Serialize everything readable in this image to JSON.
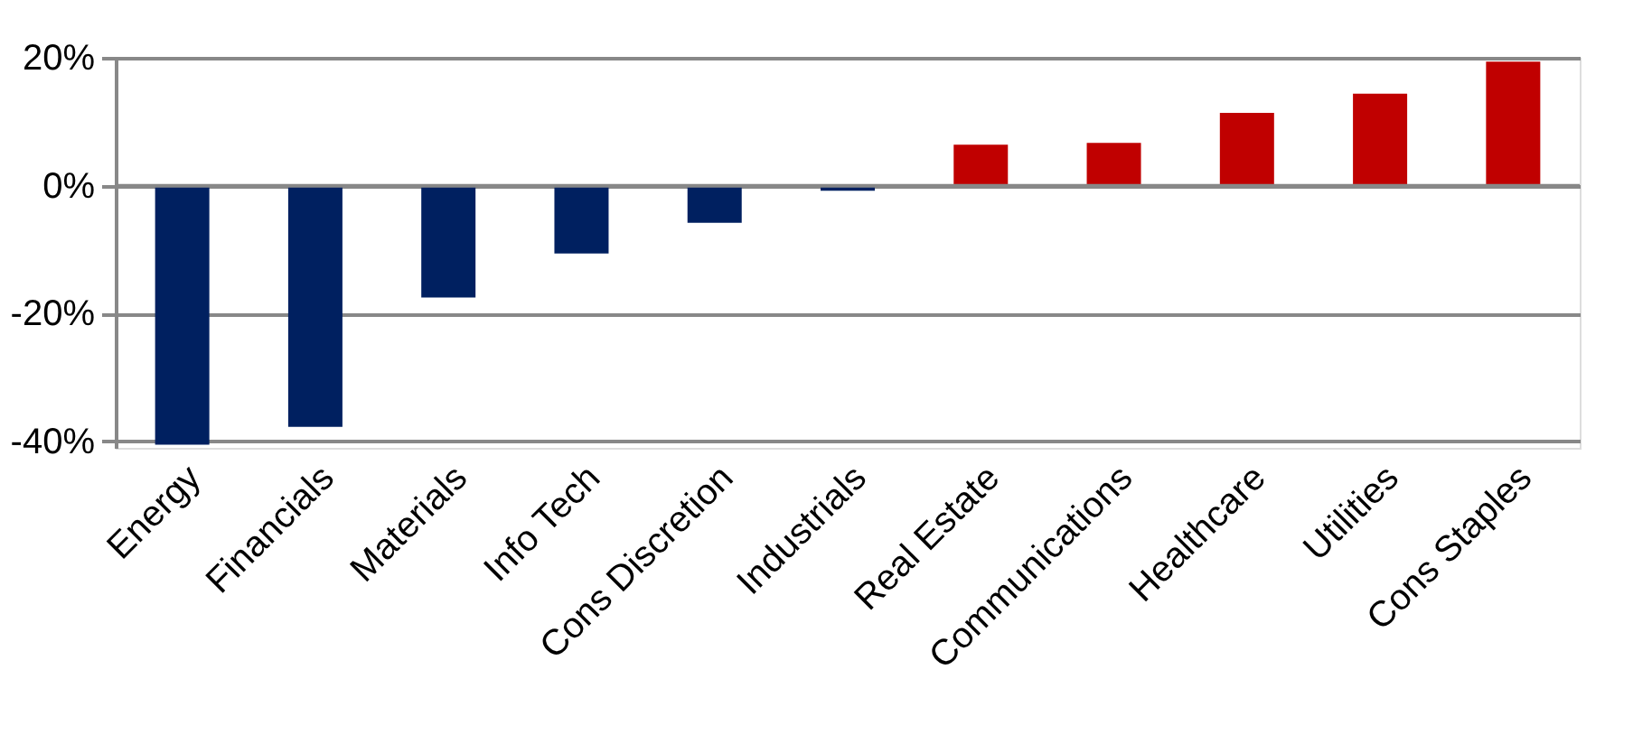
{
  "chart_data": {
    "type": "bar",
    "categories": [
      "Energy",
      "Financials",
      "Materials",
      "Info Tech",
      "Cons Discretion",
      "Industrials",
      "Real Estate",
      "Communications",
      "Healthcare",
      "Utilities",
      "Cons Staples"
    ],
    "values": [
      -40.5,
      -37.7,
      -17.5,
      -10.6,
      -5.8,
      -0.8,
      6.4,
      6.7,
      11.4,
      14.4,
      19.4
    ],
    "colors": [
      "#002060",
      "#002060",
      "#002060",
      "#002060",
      "#002060",
      "#002060",
      "#c00000",
      "#c00000",
      "#c00000",
      "#c00000",
      "#c00000"
    ],
    "ylim": [
      -41,
      20
    ],
    "yticks": [
      {
        "value": -40,
        "label": "-40%"
      },
      {
        "value": -20,
        "label": "-20%"
      },
      {
        "value": 0,
        "label": "0%"
      },
      {
        "value": 20,
        "label": "20%"
      }
    ],
    "grid": "y"
  }
}
